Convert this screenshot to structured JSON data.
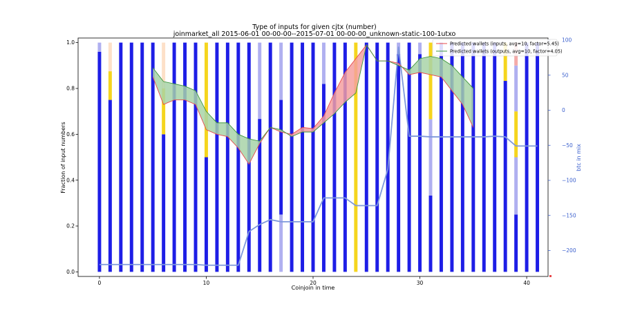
{
  "chart_data": {
    "type": "bar",
    "title_line1": "Type of inputs for given cjtx (number)",
    "title_line2": "joinmarket_all 2015-06-01 00-00-00--2015-07-01 00-00-00_unknown-static-100-1utxo",
    "xlabel": "Coinjoin in time",
    "ylabel": "Fraction of input numbers",
    "ylabel_right": "btc in mix",
    "xlim": [
      -2,
      42
    ],
    "ylim": [
      -0.02,
      1.02
    ],
    "ylim_right": [
      -237,
      103
    ],
    "x_ticks": [
      0,
      10,
      20,
      30,
      40
    ],
    "y_ticks": [
      0.0,
      0.2,
      0.4,
      0.6,
      0.8,
      1.0
    ],
    "y_ticks_right": [
      100,
      50,
      0,
      -50,
      -100,
      -150,
      -200
    ],
    "colors": {
      "fresh": "#1e1ee6",
      "remix": "#b0b0f0",
      "yellow": "#f5d51e",
      "peach": "#fde0c8",
      "pink": "#f4aaa8",
      "pred_inputs": "#e8484a",
      "pred_outputs": "#3c963c",
      "fill_red": "#f4a0a0",
      "fill_green": "#a8d4a8",
      "btc_line": "#7e98dc",
      "right_axis": "#3a5fcd"
    },
    "stacks": [
      [
        {
          "c": "fresh",
          "v": 0.96
        },
        {
          "c": "remix",
          "v": 0.04
        }
      ],
      [
        {
          "c": "fresh",
          "v": 0.75
        },
        {
          "c": "yellow",
          "v": 0.125
        },
        {
          "c": "peach",
          "v": 0.125
        }
      ],
      [
        {
          "c": "fresh",
          "v": 1.0
        }
      ],
      [
        {
          "c": "fresh",
          "v": 1.0
        }
      ],
      [
        {
          "c": "fresh",
          "v": 1.0
        }
      ],
      [
        {
          "c": "fresh",
          "v": 1.0
        }
      ],
      [
        {
          "c": "fresh",
          "v": 0.6
        },
        {
          "c": "yellow",
          "v": 0.2
        },
        {
          "c": "peach",
          "v": 0.2
        }
      ],
      [
        {
          "c": "fresh",
          "v": 1.0
        }
      ],
      [
        {
          "c": "fresh",
          "v": 1.0
        }
      ],
      [
        {
          "c": "fresh",
          "v": 1.0
        }
      ],
      [
        {
          "c": "fresh",
          "v": 0.5
        },
        {
          "c": "yellow",
          "v": 0.5
        }
      ],
      [
        {
          "c": "fresh",
          "v": 1.0
        }
      ],
      [
        {
          "c": "fresh",
          "v": 1.0
        }
      ],
      [
        {
          "c": "fresh",
          "v": 1.0
        }
      ],
      [
        {
          "c": "fresh",
          "v": 1.0
        }
      ],
      [
        {
          "c": "fresh",
          "v": 0.667
        },
        {
          "c": "remix",
          "v": 0.333
        }
      ],
      [
        {
          "c": "fresh",
          "v": 1.0
        }
      ],
      [
        {
          "c": "remix",
          "v": 0.25
        },
        {
          "c": "fresh",
          "v": 0.5
        },
        {
          "c": "remix",
          "v": 0.25
        }
      ],
      [
        {
          "c": "fresh",
          "v": 1.0
        }
      ],
      [
        {
          "c": "fresh",
          "v": 1.0
        }
      ],
      [
        {
          "c": "fresh",
          "v": 1.0
        }
      ],
      [
        {
          "c": "fresh",
          "v": 0.82
        },
        {
          "c": "remix",
          "v": 0.18
        }
      ],
      [
        {
          "c": "fresh",
          "v": 1.0
        }
      ],
      [
        {
          "c": "fresh",
          "v": 1.0
        }
      ],
      [
        {
          "c": "yellow",
          "v": 1.0
        }
      ],
      [
        {
          "c": "fresh",
          "v": 1.0
        }
      ],
      [
        {
          "c": "fresh",
          "v": 1.0
        }
      ],
      [
        {
          "c": "fresh",
          "v": 1.0
        }
      ],
      [
        {
          "c": "fresh",
          "v": 0.95
        },
        {
          "c": "remix",
          "v": 0.05
        }
      ],
      [
        {
          "c": "fresh",
          "v": 1.0
        }
      ],
      [
        {
          "c": "fresh",
          "v": 0.95
        },
        {
          "c": "remix",
          "v": 0.05
        }
      ],
      [
        {
          "c": "fresh",
          "v": 0.333
        },
        {
          "c": "remix",
          "v": 0.333
        },
        {
          "c": "yellow",
          "v": 0.334
        }
      ],
      [
        {
          "c": "fresh",
          "v": 1.0
        }
      ],
      [
        {
          "c": "fresh",
          "v": 1.0
        }
      ],
      [
        {
          "c": "fresh",
          "v": 1.0
        }
      ],
      [
        {
          "c": "fresh",
          "v": 1.0
        }
      ],
      [
        {
          "c": "fresh",
          "v": 1.0
        }
      ],
      [
        {
          "c": "fresh",
          "v": 1.0
        }
      ],
      [
        {
          "c": "fresh",
          "v": 0.833
        },
        {
          "c": "yellow",
          "v": 0.167
        }
      ],
      [
        {
          "c": "fresh",
          "v": 0.25
        },
        {
          "c": "remix",
          "v": 0.25
        },
        {
          "c": "yellow",
          "v": 0.2
        },
        {
          "c": "remix",
          "v": 0.2
        },
        {
          "c": "pink",
          "v": 0.1
        }
      ],
      [
        {
          "c": "fresh",
          "v": 1.0
        }
      ],
      [
        {
          "c": "fresh",
          "v": 1.0
        }
      ]
    ],
    "pred_inputs": {
      "name": "Predicted wallets (inputs, avg=10, factor=5.45)",
      "x": [
        5,
        6,
        7,
        8,
        9,
        10,
        11,
        12,
        13,
        14,
        15,
        16,
        17,
        18,
        19,
        20,
        21,
        22,
        23,
        24,
        25,
        26,
        27,
        28,
        29,
        30,
        31,
        32,
        33,
        34,
        35
      ],
      "y": [
        0.85,
        0.73,
        0.75,
        0.75,
        0.73,
        0.62,
        0.6,
        0.59,
        0.54,
        0.47,
        0.56,
        0.63,
        0.61,
        0.6,
        0.63,
        0.625,
        0.68,
        0.78,
        0.87,
        0.93,
        0.99,
        0.92,
        0.92,
        0.91,
        0.86,
        0.87,
        0.86,
        0.85,
        0.79,
        0.73,
        0.63
      ]
    },
    "pred_outputs": {
      "name": "Predicted wallets (outputs, avg=10, factor=4.05)",
      "x": [
        5,
        6,
        7,
        8,
        9,
        10,
        11,
        12,
        13,
        14,
        15,
        16,
        17,
        18,
        19,
        20,
        21,
        22,
        23,
        24,
        25,
        26,
        27,
        28,
        29,
        30,
        31,
        32,
        33,
        34,
        35
      ],
      "y": [
        0.89,
        0.83,
        0.82,
        0.81,
        0.79,
        0.7,
        0.65,
        0.65,
        0.6,
        0.58,
        0.57,
        0.63,
        0.62,
        0.59,
        0.61,
        0.61,
        0.65,
        0.69,
        0.74,
        0.78,
        0.99,
        0.92,
        0.92,
        0.9,
        0.88,
        0.93,
        0.94,
        0.93,
        0.9,
        0.85,
        0.8
      ]
    },
    "btc_in_mix": {
      "x": [
        0,
        1,
        2,
        3,
        4,
        5,
        6,
        7,
        8,
        9,
        10,
        11,
        12,
        13,
        14,
        15,
        16,
        17,
        18,
        19,
        20,
        21,
        22,
        23,
        24,
        25,
        26,
        27,
        28,
        29,
        30,
        31,
        32,
        33,
        34,
        35,
        36,
        37,
        38,
        39,
        40,
        41
      ],
      "y": [
        -220,
        -220,
        -220,
        -220,
        -220,
        -220,
        -220,
        -220,
        -220,
        -220,
        -221,
        -221,
        -221,
        -221,
        -173,
        -163,
        -156,
        -159,
        -159,
        -159,
        -159,
        -125,
        -125,
        -125,
        -136,
        -136,
        -136,
        -84,
        90,
        -37,
        -37,
        -38,
        -38,
        -38,
        -38,
        -38,
        -38,
        -37,
        -38,
        -51,
        -51,
        -51
      ]
    }
  }
}
